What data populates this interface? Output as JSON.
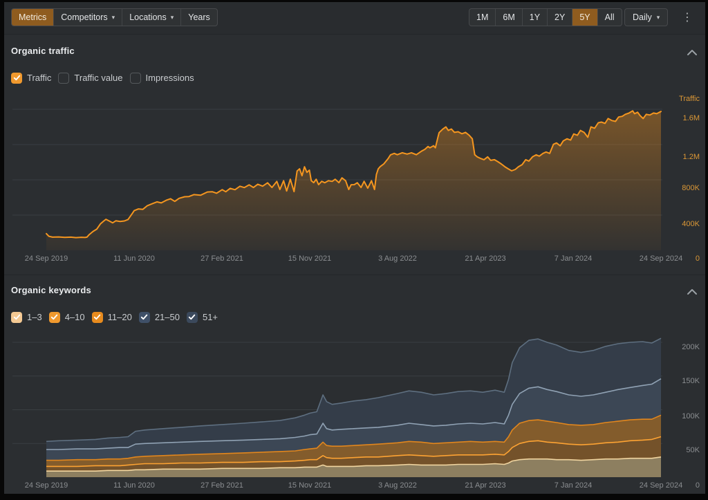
{
  "colors": {
    "accent_orange": "#f5961f",
    "active_button_bg": "#8f5c1f",
    "axis_label_orange": "#dc9836",
    "axis_label_gray": "#8b8e91",
    "panel_bg": "#2b2e31"
  },
  "toolbar": {
    "metrics_label": "Metrics",
    "competitors_label": "Competitors",
    "locations_label": "Locations",
    "years_label": "Years",
    "range_buttons": [
      "1M",
      "6M",
      "1Y",
      "2Y",
      "5Y",
      "All"
    ],
    "active_range": "5Y",
    "granularity_label": "Daily",
    "caret_icon": "▾",
    "kebab_icon": "⋮"
  },
  "sections": {
    "traffic": {
      "title": "Organic traffic",
      "checkboxes": [
        {
          "label": "Traffic",
          "checked": true,
          "color": "#f0992e"
        },
        {
          "label": "Traffic value",
          "checked": false
        },
        {
          "label": "Impressions",
          "checked": false
        }
      ]
    },
    "keywords": {
      "title": "Organic keywords",
      "checkboxes": [
        {
          "label": "1–3",
          "checked": true,
          "color": "#f4c993"
        },
        {
          "label": "4–10",
          "checked": true,
          "color": "#f0992e"
        },
        {
          "label": "11–20",
          "checked": true,
          "color": "#e78b1e"
        },
        {
          "label": "21–50",
          "checked": true,
          "color": "#3f5068"
        },
        {
          "label": "51+",
          "checked": true,
          "color": "#3b495c"
        }
      ]
    }
  },
  "chart_data": [
    {
      "id": "organic-traffic",
      "type": "area",
      "title": "Organic traffic",
      "axis_title": "Traffic",
      "unit": "thousands",
      "ylim": [
        0,
        1700
      ],
      "x_labels": [
        "24 Sep 2019",
        "11 Jun 2020",
        "27 Feb 2021",
        "15 Nov 2021",
        "3 Aug 2022",
        "21 Apr 2023",
        "7 Jan 2024",
        "24 Sep 2024"
      ],
      "y_ticks": [
        "1.6M",
        "1.2M",
        "800K",
        "400K",
        "0"
      ],
      "y_tick_values": [
        1600,
        1200,
        800,
        400,
        0
      ],
      "line_color": "#f5961f",
      "fill_gradient": [
        "rgba(246,148,30,0.38)",
        "rgba(246,148,30,0.04)"
      ],
      "points": [
        [
          0.0,
          190
        ],
        [
          0.004,
          160
        ],
        [
          0.01,
          150
        ],
        [
          0.02,
          152
        ],
        [
          0.03,
          147
        ],
        [
          0.04,
          150
        ],
        [
          0.048,
          144
        ],
        [
          0.057,
          148
        ],
        [
          0.063,
          146
        ],
        [
          0.066,
          150
        ],
        [
          0.07,
          180
        ],
        [
          0.076,
          215
        ],
        [
          0.082,
          240
        ],
        [
          0.088,
          300
        ],
        [
          0.093,
          330
        ],
        [
          0.097,
          352
        ],
        [
          0.103,
          330
        ],
        [
          0.108,
          312
        ],
        [
          0.113,
          335
        ],
        [
          0.12,
          328
        ],
        [
          0.127,
          333
        ],
        [
          0.133,
          350
        ],
        [
          0.14,
          420
        ],
        [
          0.143,
          450
        ],
        [
          0.15,
          470
        ],
        [
          0.157,
          465
        ],
        [
          0.164,
          505
        ],
        [
          0.172,
          528
        ],
        [
          0.18,
          550
        ],
        [
          0.187,
          538
        ],
        [
          0.195,
          568
        ],
        [
          0.202,
          585
        ],
        [
          0.209,
          555
        ],
        [
          0.216,
          590
        ],
        [
          0.225,
          608
        ],
        [
          0.232,
          610
        ],
        [
          0.24,
          632
        ],
        [
          0.251,
          625
        ],
        [
          0.262,
          662
        ],
        [
          0.27,
          665
        ],
        [
          0.277,
          648
        ],
        [
          0.286,
          688
        ],
        [
          0.292,
          665
        ],
        [
          0.299,
          703
        ],
        [
          0.307,
          688
        ],
        [
          0.315,
          727
        ],
        [
          0.322,
          712
        ],
        [
          0.33,
          743
        ],
        [
          0.337,
          713
        ],
        [
          0.344,
          750
        ],
        [
          0.352,
          728
        ],
        [
          0.36,
          766
        ],
        [
          0.367,
          713
        ],
        [
          0.375,
          782
        ],
        [
          0.38,
          690
        ],
        [
          0.386,
          790
        ],
        [
          0.391,
          673
        ],
        [
          0.397,
          806
        ],
        [
          0.403,
          666
        ],
        [
          0.408,
          900
        ],
        [
          0.412,
          925
        ],
        [
          0.416,
          846
        ],
        [
          0.42,
          948
        ],
        [
          0.424,
          885
        ],
        [
          0.428,
          910
        ],
        [
          0.431,
          790
        ],
        [
          0.435,
          768
        ],
        [
          0.439,
          806
        ],
        [
          0.443,
          745
        ],
        [
          0.448,
          783
        ],
        [
          0.453,
          767
        ],
        [
          0.459,
          790
        ],
        [
          0.465,
          782
        ],
        [
          0.47,
          806
        ],
        [
          0.476,
          768
        ],
        [
          0.481,
          822
        ],
        [
          0.487,
          790
        ],
        [
          0.492,
          690
        ],
        [
          0.496,
          744
        ],
        [
          0.501,
          745
        ],
        [
          0.506,
          767
        ],
        [
          0.512,
          713
        ],
        [
          0.517,
          783
        ],
        [
          0.523,
          705
        ],
        [
          0.529,
          790
        ],
        [
          0.534,
          690
        ],
        [
          0.537,
          860
        ],
        [
          0.54,
          925
        ],
        [
          0.543,
          948
        ],
        [
          0.549,
          980
        ],
        [
          0.556,
          1040
        ],
        [
          0.56,
          1083
        ],
        [
          0.566,
          1100
        ],
        [
          0.571,
          1085
        ],
        [
          0.579,
          1107
        ],
        [
          0.587,
          1092
        ],
        [
          0.594,
          1107
        ],
        [
          0.602,
          1085
        ],
        [
          0.61,
          1123
        ],
        [
          0.616,
          1146
        ],
        [
          0.621,
          1178
        ],
        [
          0.624,
          1163
        ],
        [
          0.63,
          1186
        ],
        [
          0.633,
          1163
        ],
        [
          0.637,
          1280
        ],
        [
          0.639,
          1335
        ],
        [
          0.645,
          1375
        ],
        [
          0.65,
          1400
        ],
        [
          0.654,
          1360
        ],
        [
          0.659,
          1376
        ],
        [
          0.664,
          1338
        ],
        [
          0.67,
          1345
        ],
        [
          0.676,
          1322
        ],
        [
          0.682,
          1338
        ],
        [
          0.688,
          1305
        ],
        [
          0.693,
          1265
        ],
        [
          0.697,
          1085
        ],
        [
          0.701,
          1060
        ],
        [
          0.706,
          1044
        ],
        [
          0.712,
          1028
        ],
        [
          0.718,
          1060
        ],
        [
          0.723,
          1020
        ],
        [
          0.729,
          1028
        ],
        [
          0.735,
          1004
        ],
        [
          0.74,
          980
        ],
        [
          0.746,
          948
        ],
        [
          0.751,
          926
        ],
        [
          0.757,
          902
        ],
        [
          0.763,
          918
        ],
        [
          0.768,
          948
        ],
        [
          0.774,
          972
        ],
        [
          0.78,
          1028
        ],
        [
          0.785,
          1012
        ],
        [
          0.791,
          1060
        ],
        [
          0.797,
          1083
        ],
        [
          0.802,
          1068
        ],
        [
          0.808,
          1100
        ],
        [
          0.813,
          1115
        ],
        [
          0.819,
          1100
        ],
        [
          0.825,
          1202
        ],
        [
          0.83,
          1218
        ],
        [
          0.836,
          1186
        ],
        [
          0.841,
          1241
        ],
        [
          0.847,
          1265
        ],
        [
          0.853,
          1250
        ],
        [
          0.858,
          1320
        ],
        [
          0.864,
          1305
        ],
        [
          0.869,
          1360
        ],
        [
          0.875,
          1337
        ],
        [
          0.881,
          1282
        ],
        [
          0.886,
          1400
        ],
        [
          0.892,
          1385
        ],
        [
          0.898,
          1447
        ],
        [
          0.903,
          1455
        ],
        [
          0.909,
          1440
        ],
        [
          0.914,
          1495
        ],
        [
          0.92,
          1472
        ],
        [
          0.926,
          1463
        ],
        [
          0.931,
          1512
        ],
        [
          0.937,
          1520
        ],
        [
          0.942,
          1543
        ],
        [
          0.948,
          1558
        ],
        [
          0.954,
          1582
        ],
        [
          0.957,
          1550
        ],
        [
          0.962,
          1566
        ],
        [
          0.966,
          1528
        ],
        [
          0.971,
          1495
        ],
        [
          0.976,
          1543
        ],
        [
          0.982,
          1535
        ],
        [
          0.988,
          1558
        ],
        [
          0.993,
          1550
        ],
        [
          1.0,
          1575
        ]
      ]
    },
    {
      "id": "organic-keywords",
      "type": "stacked-area",
      "title": "Organic keywords",
      "unit": "thousands",
      "ylim": [
        0,
        215
      ],
      "x_labels": [
        "24 Sep 2019",
        "11 Jun 2020",
        "27 Feb 2021",
        "15 Nov 2021",
        "3 Aug 2022",
        "21 Apr 2023",
        "7 Jan 2024",
        "24 Sep 2024"
      ],
      "y_ticks": [
        "200K",
        "150K",
        "100K",
        "50K",
        "0"
      ],
      "y_tick_values": [
        200,
        150,
        100,
        50,
        0
      ],
      "x": [
        0.0,
        0.02,
        0.05,
        0.08,
        0.1,
        0.12,
        0.133,
        0.145,
        0.16,
        0.19,
        0.22,
        0.25,
        0.286,
        0.32,
        0.35,
        0.38,
        0.405,
        0.42,
        0.429,
        0.44,
        0.45,
        0.456,
        0.465,
        0.48,
        0.5,
        0.52,
        0.54,
        0.571,
        0.59,
        0.61,
        0.63,
        0.65,
        0.67,
        0.69,
        0.71,
        0.73,
        0.745,
        0.752,
        0.758,
        0.77,
        0.785,
        0.8,
        0.815,
        0.83,
        0.85,
        0.87,
        0.89,
        0.91,
        0.93,
        0.95,
        0.97,
        0.985,
        1.0
      ],
      "series": [
        {
          "name": "1–3",
          "fill": "#8d7f60",
          "line": "#f1d5a0",
          "cumulative": [
            9,
            9,
            9,
            9,
            10,
            10,
            10,
            11,
            11,
            12,
            12,
            12,
            13,
            13,
            13,
            14,
            14,
            15,
            15,
            15,
            18,
            16,
            16,
            16,
            16,
            17,
            17,
            18,
            19,
            18,
            18,
            18,
            19,
            19,
            19,
            20,
            19,
            21,
            24,
            26,
            27,
            27,
            27,
            26,
            26,
            25,
            26,
            27,
            27,
            28,
            28,
            28,
            30
          ]
        },
        {
          "name": "4–10",
          "fill": "#74522a",
          "line": "#fda333",
          "cumulative": [
            16,
            16,
            16,
            17,
            17,
            17,
            18,
            19,
            20,
            20,
            21,
            21,
            22,
            22,
            23,
            23,
            24,
            25,
            26,
            26,
            32,
            29,
            28,
            28,
            29,
            30,
            30,
            32,
            33,
            32,
            31,
            32,
            33,
            33,
            33,
            34,
            33,
            38,
            44,
            50,
            53,
            54,
            52,
            51,
            49,
            48,
            49,
            51,
            52,
            54,
            55,
            56,
            60
          ]
        },
        {
          "name": "11–20",
          "fill": "#835c2c",
          "line": "#e1861d",
          "cumulative": [
            25,
            25,
            26,
            26,
            27,
            27,
            28,
            30,
            31,
            32,
            33,
            34,
            35,
            36,
            37,
            38,
            39,
            41,
            42,
            43,
            52,
            47,
            46,
            46,
            47,
            48,
            49,
            51,
            53,
            52,
            50,
            51,
            52,
            53,
            52,
            53,
            52,
            60,
            70,
            80,
            84,
            85,
            83,
            81,
            78,
            77,
            78,
            81,
            83,
            85,
            86,
            86,
            92
          ]
        },
        {
          "name": "21–50",
          "fill": "#3c4755",
          "line": "#90a2b4",
          "cumulative": [
            41,
            41,
            42,
            42,
            43,
            44,
            44,
            49,
            50,
            51,
            52,
            53,
            54,
            55,
            56,
            57,
            59,
            61,
            63,
            64,
            80,
            72,
            70,
            71,
            72,
            73,
            74,
            77,
            80,
            78,
            76,
            77,
            79,
            80,
            79,
            81,
            79,
            92,
            108,
            124,
            132,
            134,
            130,
            127,
            122,
            120,
            122,
            126,
            130,
            133,
            136,
            138,
            146
          ]
        },
        {
          "name": "51+",
          "fill": "#343d49",
          "line": "#5e6f80",
          "cumulative": [
            53,
            54,
            55,
            56,
            58,
            59,
            60,
            68,
            70,
            72,
            74,
            76,
            78,
            80,
            82,
            84,
            88,
            92,
            95,
            97,
            122,
            112,
            108,
            110,
            113,
            115,
            118,
            124,
            128,
            126,
            122,
            124,
            127,
            128,
            126,
            129,
            126,
            145,
            170,
            192,
            203,
            205,
            200,
            196,
            188,
            185,
            188,
            194,
            198,
            200,
            201,
            199,
            206
          ]
        }
      ]
    }
  ]
}
